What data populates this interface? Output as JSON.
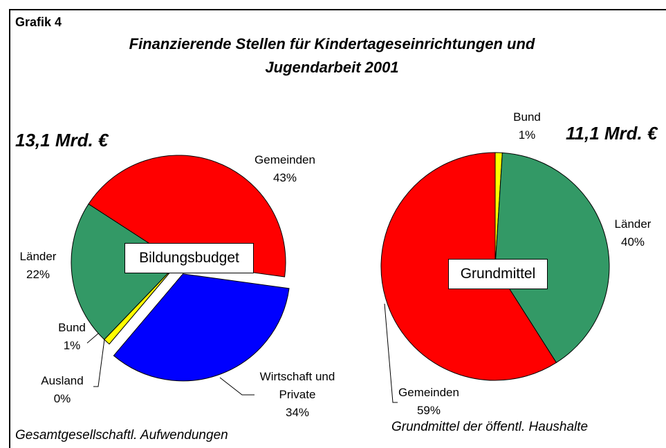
{
  "header": "Grafik 4",
  "title": "Finanzierende Stellen für Kindertageseinrichtungen und Jugendarbeit 2001",
  "chart_data": [
    {
      "type": "pie",
      "total_label": "13,1 Mrd. €",
      "center_label": "Bildungsbudget",
      "caption": "Gesamtgesellschaftl. Aufwendungen",
      "categories": [
        "Gemeinden",
        "Wirtschaft und Private",
        "Ausland",
        "Bund",
        "Länder"
      ],
      "values": [
        43,
        34,
        0,
        1,
        22
      ],
      "value_labels": [
        "43%",
        "34%",
        "0%",
        "1%",
        "22%"
      ],
      "colors": [
        "#ff0000",
        "#0000ff",
        "#ffffff",
        "#ffff00",
        "#339966"
      ],
      "exploded": [
        false,
        true,
        false,
        false,
        false
      ]
    },
    {
      "type": "pie",
      "total_label": "11,1 Mrd. €",
      "center_label": "Grundmittel",
      "caption": "Grundmittel der öffentl. Haushalte",
      "categories": [
        "Bund",
        "Länder",
        "Gemeinden"
      ],
      "values": [
        1,
        40,
        59
      ],
      "value_labels": [
        "1%",
        "40%",
        "59%"
      ],
      "colors": [
        "#ffff00",
        "#339966",
        "#ff0000"
      ],
      "exploded": [
        false,
        false,
        false
      ]
    }
  ]
}
